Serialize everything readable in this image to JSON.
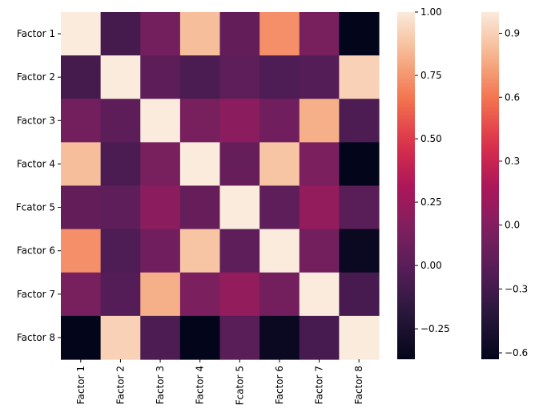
{
  "chart_data": {
    "type": "heatmap",
    "rows": [
      "Factor 1",
      "Factor 2",
      "Factor 3",
      "Factor 4",
      "Fcator 5",
      "Factor 6",
      "Factor 7",
      "Factor 8"
    ],
    "columns": [
      "Factor 1",
      "Factor 2",
      "Factor 3",
      "Factor 4",
      "Fcator 5",
      "Factor 6",
      "Factor 7",
      "Factor 8"
    ],
    "values": [
      [
        1.0,
        -0.08,
        0.1,
        0.86,
        0.04,
        0.73,
        0.12,
        -0.42
      ],
      [
        -0.08,
        1.0,
        0.01,
        -0.06,
        0.02,
        -0.04,
        -0.02,
        0.92
      ],
      [
        0.1,
        0.01,
        1.0,
        0.12,
        0.19,
        0.09,
        0.82,
        -0.05
      ],
      [
        0.86,
        -0.06,
        0.12,
        1.0,
        0.05,
        0.88,
        0.13,
        -0.38
      ],
      [
        0.04,
        0.02,
        0.19,
        0.05,
        1.0,
        0.02,
        0.22,
        0.0
      ],
      [
        0.73,
        -0.04,
        0.09,
        0.88,
        0.02,
        1.0,
        0.1,
        -0.33
      ],
      [
        0.12,
        -0.02,
        0.82,
        0.13,
        0.22,
        0.1,
        1.0,
        -0.07
      ],
      [
        -0.42,
        0.92,
        -0.05,
        -0.38,
        0.0,
        -0.33,
        -0.07,
        1.0
      ]
    ],
    "colormap": "rocket",
    "colorbars": [
      {
        "range": [
          -0.37,
          1.0
        ],
        "ticks": [
          1.0,
          0.75,
          0.5,
          0.25,
          0.0,
          -0.25
        ],
        "tick_labels": [
          "1.00",
          "0.75",
          "0.50",
          "0.25",
          "0.00",
          "−0.25"
        ]
      },
      {
        "range": [
          -0.63,
          1.0
        ],
        "ticks": [
          0.9,
          0.6,
          0.3,
          0.0,
          -0.3,
          -0.6
        ],
        "tick_labels": [
          "0.9",
          "0.6",
          "0.3",
          "0.0",
          "−0.3",
          "−0.6"
        ]
      }
    ],
    "grid": false,
    "title": "",
    "xlabel": "",
    "ylabel": ""
  }
}
